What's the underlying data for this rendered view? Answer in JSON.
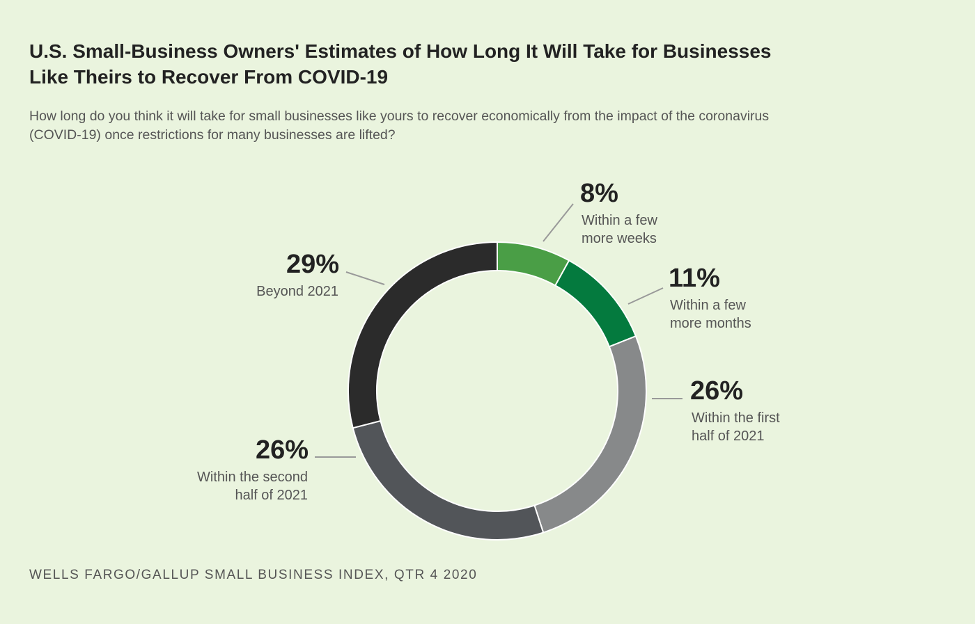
{
  "chart_data": {
    "type": "pie",
    "donut": true,
    "title": "U.S. Small-Business Owners' Estimates of How Long It Will Take for Businesses Like Theirs to Recover From COVID-19",
    "subtitle": "How long do you think it will take for small businesses like yours to recover economically from the impact of the coronavirus (COVID-19) once restrictions for many businesses are lifted?",
    "source": "WELLS FARGO/GALLUP SMALL BUSINESS INDEX, QTR 4 2020",
    "slices": [
      {
        "value": 8,
        "value_label": "8%",
        "label_lines": [
          "Within a few",
          "more weeks"
        ],
        "color": "#4a9e46"
      },
      {
        "value": 11,
        "value_label": "11%",
        "label_lines": [
          "Within a few",
          "more months"
        ],
        "color": "#047a3e"
      },
      {
        "value": 26,
        "value_label": "26%",
        "label_lines": [
          "Within the first",
          "half of 2021"
        ],
        "color": "#87898a"
      },
      {
        "value": 26,
        "value_label": "26%",
        "label_lines": [
          "Within the second",
          "half of 2021"
        ],
        "color": "#525559"
      },
      {
        "value": 29,
        "value_label": "29%",
        "label_lines": [
          "Beyond 2021"
        ],
        "color": "#2b2b2b"
      }
    ]
  }
}
